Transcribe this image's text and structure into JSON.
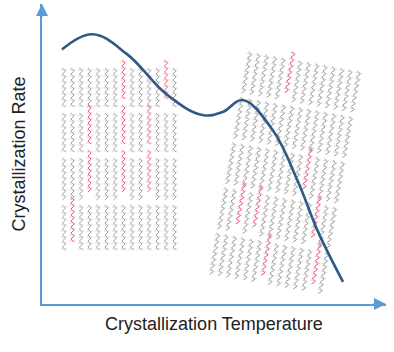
{
  "chart_data": {
    "type": "line",
    "xlabel": "Crystallization Temperature",
    "ylabel": "Crystallization Rate",
    "x": [
      0.58,
      1.46,
      2.48,
      3.64,
      4.66,
      5.25,
      5.83,
      6.71,
      7.43,
      8.02,
      8.75
    ],
    "values": [
      8.48,
      8.99,
      8.32,
      6.97,
      6.3,
      6.4,
      6.8,
      5.79,
      4.11,
      2.42,
      0.74
    ],
    "color": "#2e5a88",
    "line_style": "solid",
    "xlim": [
      0,
      10
    ],
    "ylim": [
      0,
      10
    ],
    "grid": false,
    "tick_labels": false
  }
}
